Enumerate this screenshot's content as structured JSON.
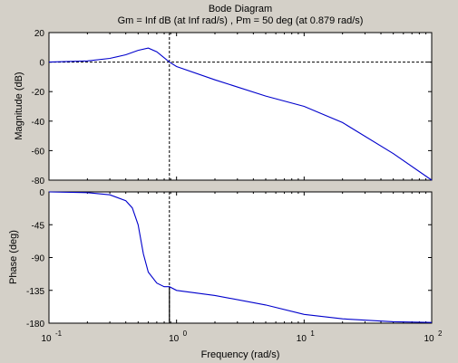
{
  "figure": {
    "title": "Bode Diagram",
    "subtitle": "Gm = Inf dB (at Inf rad/s) ,  Pm = 50 deg (at 0.879 rad/s)",
    "xlabel": "Frequency  (rad/s)",
    "background_color": "#d4d0c8",
    "axes_color": "#ffffff",
    "curve_color": "#0000cc",
    "marker_color": "#000000"
  },
  "chart_data": [
    {
      "type": "line",
      "ylabel": "Magnitude (dB)",
      "xscale": "log",
      "xlim": [
        0.1,
        100
      ],
      "ylim": [
        -80,
        20
      ],
      "yticks": [
        20,
        0,
        -20,
        -40,
        -60,
        -80
      ],
      "grid": false,
      "series": [
        {
          "x": [
            0.1,
            0.2,
            0.3,
            0.4,
            0.5,
            0.6,
            0.7,
            0.879,
            1,
            2,
            5,
            10,
            20,
            50,
            100
          ],
          "y": [
            0,
            0.8,
            2.5,
            5,
            8,
            9.5,
            7,
            0,
            -3,
            -12,
            -23,
            -30,
            -41,
            -62,
            -80
          ]
        }
      ],
      "reference_lines": [
        {
          "axis": "y",
          "value": 0,
          "style": "dashed"
        },
        {
          "axis": "x",
          "value": 0.879,
          "style": "dashed"
        }
      ]
    },
    {
      "type": "line",
      "ylabel": "Phase (deg)",
      "xscale": "log",
      "xlim": [
        0.1,
        100
      ],
      "ylim": [
        -180,
        0
      ],
      "yticks": [
        0,
        -45,
        -90,
        -135,
        -180
      ],
      "xticks": [
        "10",
        "10",
        "10",
        "10"
      ],
      "xtick_exponents": [
        "-1",
        "0",
        "1",
        "2"
      ],
      "xtick_values": [
        0.1,
        1,
        10,
        100
      ],
      "grid": false,
      "series": [
        {
          "x": [
            0.1,
            0.2,
            0.3,
            0.4,
            0.45,
            0.5,
            0.55,
            0.6,
            0.7,
            0.8,
            0.879,
            1,
            2,
            5,
            10,
            20,
            50,
            100
          ],
          "y": [
            0,
            -1,
            -4,
            -12,
            -22,
            -45,
            -85,
            -110,
            -125,
            -130,
            -130,
            -135,
            -142,
            -155,
            -168,
            -174,
            -178,
            -179
          ]
        }
      ],
      "reference_lines": [
        {
          "axis": "y",
          "value": -180,
          "style": "dashed"
        },
        {
          "axis": "x",
          "value": 0.879,
          "style": "dashed"
        }
      ],
      "margin_marker": {
        "x": 0.879,
        "from": -130,
        "to": -180
      }
    }
  ]
}
